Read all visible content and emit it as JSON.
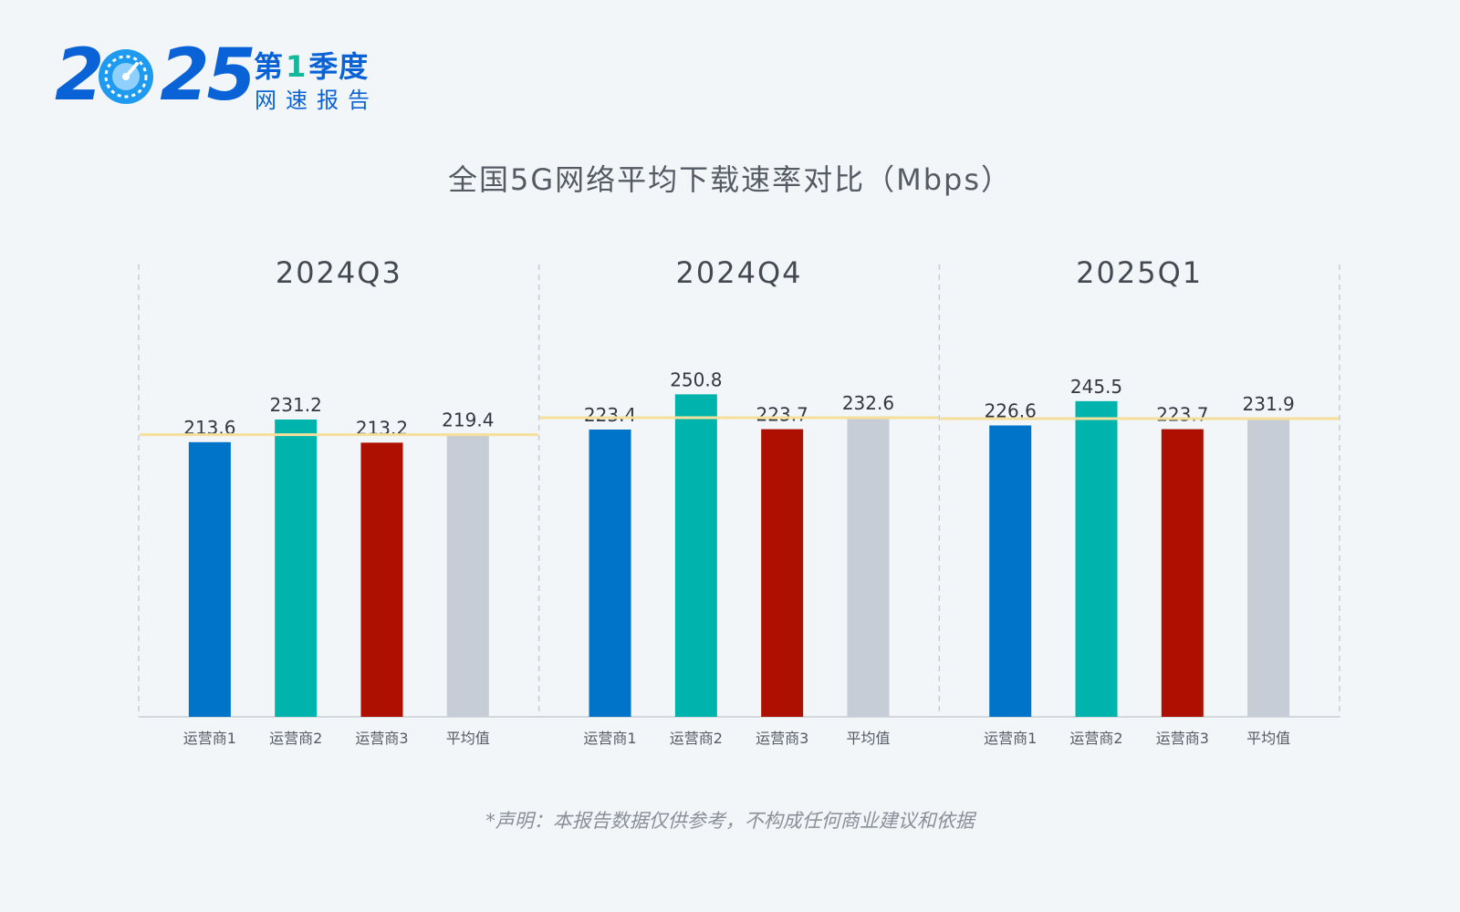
{
  "logo": {
    "year": "2025",
    "quarter_prefix": "第",
    "quarter_number": "1",
    "quarter_suffix": "季度",
    "subtitle": "网速报告",
    "icon": "speedometer-icon"
  },
  "chart_data": {
    "type": "bar",
    "title": "全国5G网络平均下载速率对比（Mbps）",
    "categories": [
      "运营商1",
      "运营商2",
      "运营商3",
      "平均值"
    ],
    "groups": [
      {
        "name": "2024Q3",
        "values": [
          213.6,
          231.2,
          213.2,
          219.4
        ],
        "average": 219.4
      },
      {
        "name": "2024Q4",
        "values": [
          223.4,
          250.8,
          223.7,
          232.6
        ],
        "average": 232.6
      },
      {
        "name": "2025Q1",
        "values": [
          226.6,
          245.5,
          223.7,
          231.9
        ],
        "average": 231.9
      }
    ],
    "colors": [
      "#0074c9",
      "#00b4ae",
      "#ad1000",
      "#c6cdd6"
    ],
    "average_line_color": "#f5df9a",
    "ylim": [
      0,
      280
    ],
    "grid": false,
    "value_labels": true
  },
  "footnote": "*声明：本报告数据仅供参考，不构成任何商业建议和依据"
}
